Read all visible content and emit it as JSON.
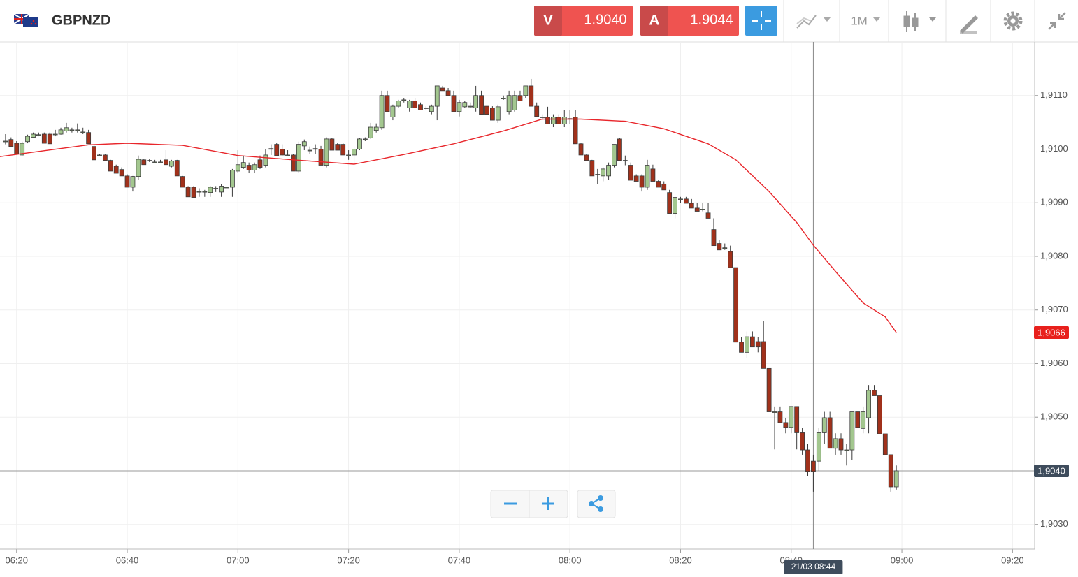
{
  "header": {
    "symbol": "GBPNZD",
    "sell": {
      "label": "V",
      "price": "1.9040"
    },
    "buy": {
      "label": "A",
      "price": "1.9044"
    },
    "interval": "1M"
  },
  "chart_data": {
    "type": "candlestick",
    "x": [
      "06:18",
      "06:19",
      "06:20",
      "06:21",
      "06:22",
      "06:23",
      "06:24",
      "06:25",
      "06:26",
      "06:27",
      "06:28",
      "06:29",
      "06:30",
      "06:31",
      "06:32",
      "06:33",
      "06:34",
      "06:35",
      "06:36",
      "06:37",
      "06:38",
      "06:39",
      "06:40",
      "06:41",
      "06:42",
      "06:43",
      "06:44",
      "06:45",
      "06:46",
      "06:47",
      "06:48",
      "06:49",
      "06:50",
      "06:51",
      "06:52",
      "06:53",
      "06:54",
      "06:55",
      "06:56",
      "06:57",
      "06:58",
      "06:59",
      "07:00",
      "07:01",
      "07:02",
      "07:03",
      "07:04",
      "07:05",
      "07:06",
      "07:07",
      "07:08",
      "07:09",
      "07:10",
      "07:11",
      "07:12",
      "07:13",
      "07:14",
      "07:15",
      "07:16",
      "07:17",
      "07:18",
      "07:19",
      "07:20",
      "07:21",
      "07:22",
      "07:23",
      "07:24",
      "07:25",
      "07:26",
      "07:27",
      "07:28",
      "07:29",
      "07:30",
      "07:31",
      "07:32",
      "07:33",
      "07:34",
      "07:35",
      "07:36",
      "07:37",
      "07:38",
      "07:39",
      "07:40",
      "07:41",
      "07:42",
      "07:43",
      "07:44",
      "07:45",
      "07:46",
      "07:47",
      "07:48",
      "07:49",
      "07:50",
      "07:51",
      "07:52",
      "07:53",
      "07:54",
      "07:55",
      "07:56",
      "07:57",
      "07:58",
      "07:59",
      "08:00",
      "08:01",
      "08:02",
      "08:03",
      "08:04",
      "08:05",
      "08:06",
      "08:07",
      "08:08",
      "08:09",
      "08:10",
      "08:11",
      "08:12",
      "08:13",
      "08:14",
      "08:15",
      "08:16",
      "08:17",
      "08:18",
      "08:19",
      "08:20",
      "08:21",
      "08:22",
      "08:23",
      "08:24",
      "08:25",
      "08:26",
      "08:27",
      "08:28",
      "08:29",
      "08:30",
      "08:31",
      "08:32",
      "08:33",
      "08:34",
      "08:35",
      "08:36",
      "08:37",
      "08:38",
      "08:39",
      "08:40",
      "08:41",
      "08:42",
      "08:43",
      "08:44",
      "08:45",
      "08:46",
      "08:47",
      "08:48",
      "08:49",
      "08:50",
      "08:51",
      "08:52",
      "08:53",
      "08:54",
      "08:55",
      "08:56",
      "08:57",
      "08:58",
      "08:59"
    ],
    "candles": [
      [
        1.91015,
        1.91028,
        1.91009,
        1.91015
      ],
      [
        1.91018,
        1.91022,
        1.91005,
        1.91005
      ],
      [
        1.91011,
        1.91015,
        1.90991,
        1.90991
      ],
      [
        1.90989,
        1.91014,
        1.90988,
        1.91011
      ],
      [
        1.91014,
        1.91027,
        1.91011,
        1.91024
      ],
      [
        1.91022,
        1.91031,
        1.91021,
        1.91028
      ],
      [
        1.91027,
        1.91031,
        1.91024,
        1.91027
      ],
      [
        1.91028,
        1.91031,
        1.91011,
        1.91011
      ],
      [
        1.91028,
        1.91031,
        1.9101,
        1.9101
      ],
      [
        1.91028,
        1.91036,
        1.91024,
        1.91028
      ],
      [
        1.91028,
        1.9104,
        1.91027,
        1.91036
      ],
      [
        1.91034,
        1.91049,
        1.91031,
        1.9104
      ],
      [
        1.91036,
        1.9104,
        1.91031,
        1.91036
      ],
      [
        1.91036,
        1.91048,
        1.91031,
        1.91036
      ],
      [
        1.91032,
        1.9104,
        1.91028,
        1.91032
      ],
      [
        1.91031,
        1.91036,
        1.9101,
        1.9101
      ],
      [
        1.91005,
        1.91009,
        1.9098,
        1.9098
      ],
      [
        1.90989,
        1.90991,
        1.90988,
        1.90989
      ],
      [
        1.90989,
        1.90991,
        1.90979,
        1.90979
      ],
      [
        1.90979,
        1.9098,
        1.90959,
        1.90959
      ],
      [
        1.90968,
        1.90971,
        1.90955,
        1.90955
      ],
      [
        1.90962,
        1.90966,
        1.9095,
        1.9095
      ],
      [
        1.9095,
        1.90953,
        1.90929,
        1.90929
      ],
      [
        1.90929,
        1.9095,
        1.90921,
        1.90949
      ],
      [
        1.90949,
        1.90988,
        1.90942,
        1.90981
      ],
      [
        1.9098,
        1.90981,
        1.90971,
        1.90971
      ],
      [
        1.90979,
        1.90981,
        1.90976,
        1.90979
      ],
      [
        1.90976,
        1.9098,
        1.90975,
        1.90976
      ],
      [
        1.90976,
        1.9098,
        1.90975,
        1.90976
      ],
      [
        1.9098,
        1.90998,
        1.90971,
        1.90971
      ],
      [
        1.90968,
        1.9098,
        1.90966,
        1.90978
      ],
      [
        1.90979,
        1.9098,
        1.9095,
        1.9095
      ],
      [
        1.90949,
        1.9095,
        1.90929,
        1.90929
      ],
      [
        1.90929,
        1.90931,
        1.90911,
        1.90911
      ],
      [
        1.90929,
        1.90931,
        1.9091,
        1.9091
      ],
      [
        1.90921,
        1.90927,
        1.90911,
        1.90921
      ],
      [
        1.90921,
        1.90924,
        1.90911,
        1.90921
      ],
      [
        1.90919,
        1.90931,
        1.90911,
        1.90929
      ],
      [
        1.90927,
        1.90931,
        1.9092,
        1.90927
      ],
      [
        1.9092,
        1.90935,
        1.90911,
        1.90931
      ],
      [
        1.90929,
        1.90931,
        1.90911,
        1.90929
      ],
      [
        1.90929,
        1.90963,
        1.90911,
        1.90961
      ],
      [
        1.90959,
        1.90998,
        1.90955,
        1.90971
      ],
      [
        1.90966,
        1.90988,
        1.90963,
        1.90975
      ],
      [
        1.9097,
        1.90975,
        1.90955,
        1.90961
      ],
      [
        1.90961,
        1.90975,
        1.90955,
        1.90971
      ],
      [
        1.9098,
        1.90988,
        1.90963,
        1.90966
      ],
      [
        1.9097,
        1.91,
        1.90966,
        1.90989
      ],
      [
        1.91001,
        1.91009,
        1.90989,
        1.91001
      ],
      [
        1.91009,
        1.91011,
        1.90988,
        1.90988
      ],
      [
        1.91,
        1.91009,
        1.90988,
        1.90989
      ],
      [
        1.90989,
        1.90998,
        1.90988,
        1.90989
      ],
      [
        1.90989,
        1.90991,
        1.90959,
        1.90959
      ],
      [
        1.90959,
        1.91014,
        1.90955,
        1.91009
      ],
      [
        1.91006,
        1.91018,
        1.90998,
        1.91014
      ],
      [
        1.90998,
        1.91005,
        1.90991,
        1.90998
      ],
      [
        1.91001,
        1.91009,
        1.90991,
        1.91001
      ],
      [
        1.91,
        1.91006,
        1.9097,
        1.9097
      ],
      [
        1.9097,
        1.91022,
        1.90966,
        1.91019
      ],
      [
        1.91019,
        1.91021,
        1.90998,
        1.90998
      ],
      [
        1.91009,
        1.91011,
        1.90998,
        1.90998
      ],
      [
        1.91009,
        1.91011,
        1.90989,
        1.90989
      ],
      [
        1.90989,
        1.90998,
        1.9098,
        1.90989
      ],
      [
        1.90989,
        1.91005,
        1.90971,
        1.91
      ],
      [
        1.91,
        1.91021,
        1.90998,
        1.91019
      ],
      [
        1.91019,
        1.91022,
        1.91015,
        1.91019
      ],
      [
        1.91021,
        1.91049,
        1.91019,
        1.91041
      ],
      [
        1.91035,
        1.91048,
        1.91031,
        1.91041
      ],
      [
        1.9104,
        1.91109,
        1.91036,
        1.911
      ],
      [
        1.911,
        1.91109,
        1.9107,
        1.9107
      ],
      [
        1.9106,
        1.91083,
        1.91054,
        1.9108
      ],
      [
        1.9108,
        1.91092,
        1.91077,
        1.9109
      ],
      [
        1.91092,
        1.91095,
        1.91087,
        1.91092
      ],
      [
        1.91077,
        1.91092,
        1.9107,
        1.9109
      ],
      [
        1.9109,
        1.91095,
        1.91077,
        1.91077
      ],
      [
        1.91083,
        1.91087,
        1.91073,
        1.91073
      ],
      [
        1.91077,
        1.9108,
        1.91073,
        1.91077
      ],
      [
        1.9107,
        1.91083,
        1.91065,
        1.9108
      ],
      [
        1.9108,
        1.91118,
        1.91054,
        1.91118
      ],
      [
        1.91114,
        1.91118,
        1.91109,
        1.91109
      ],
      [
        1.91109,
        1.91114,
        1.911,
        1.911
      ],
      [
        1.911,
        1.91109,
        1.9107,
        1.9107
      ],
      [
        1.9107,
        1.91092,
        1.91061,
        1.91087
      ],
      [
        1.91079,
        1.9109,
        1.91077,
        1.91087
      ],
      [
        1.9108,
        1.91087,
        1.91077,
        1.9108
      ],
      [
        1.91077,
        1.91118,
        1.9107,
        1.911
      ],
      [
        1.911,
        1.91109,
        1.91065,
        1.91065
      ],
      [
        1.9108,
        1.91083,
        1.91065,
        1.91065
      ],
      [
        1.91077,
        1.9108,
        1.91054,
        1.91054
      ],
      [
        1.91054,
        1.91083,
        1.91049,
        1.91079
      ],
      [
        1.91095,
        1.911,
        1.91092,
        1.91095
      ],
      [
        1.9107,
        1.91109,
        1.91065,
        1.911
      ],
      [
        1.91073,
        1.91109,
        1.9107,
        1.911
      ],
      [
        1.911,
        1.91109,
        1.9109,
        1.9109
      ],
      [
        1.911,
        1.91118,
        1.91095,
        1.91118
      ],
      [
        1.91118,
        1.91131,
        1.9108,
        1.9108
      ],
      [
        1.9108,
        1.91087,
        1.91061,
        1.91061
      ],
      [
        1.9106,
        1.91065,
        1.91054,
        1.9106
      ],
      [
        1.9106,
        1.91079,
        1.91047,
        1.91047
      ],
      [
        1.91047,
        1.91065,
        1.91041,
        1.9106
      ],
      [
        1.9106,
        1.91065,
        1.91047,
        1.91047
      ],
      [
        1.91047,
        1.91073,
        1.91041,
        1.9106
      ],
      [
        1.91057,
        1.91073,
        1.91047,
        1.91057
      ],
      [
        1.9106,
        1.91073,
        1.9101,
        1.9101
      ],
      [
        1.9101,
        1.91011,
        1.90989,
        1.90989
      ],
      [
        1.90989,
        1.90991,
        1.90979,
        1.90979
      ],
      [
        1.90979,
        1.9098,
        1.9095,
        1.9095
      ],
      [
        1.90953,
        1.90963,
        1.90935,
        1.90953
      ],
      [
        1.9095,
        1.90966,
        1.9094,
        1.90963
      ],
      [
        1.9095,
        1.90975,
        1.90942,
        1.9097
      ],
      [
        1.9097,
        1.91009,
        1.90966,
        1.91009
      ],
      [
        1.91019,
        1.91021,
        1.90979,
        1.90979
      ],
      [
        1.90979,
        1.90988,
        1.9097,
        1.90979
      ],
      [
        1.9097,
        1.90975,
        1.90942,
        1.90942
      ],
      [
        1.9095,
        1.90953,
        1.9094,
        1.9094
      ],
      [
        1.9095,
        1.90953,
        1.90921,
        1.90929
      ],
      [
        1.90929,
        1.9098,
        1.90924,
        1.9097
      ],
      [
        1.90963,
        1.90971,
        1.9094,
        1.9094
      ],
      [
        1.9094,
        1.90942,
        1.90929,
        1.90929
      ],
      [
        1.90935,
        1.9094,
        1.90924,
        1.90924
      ],
      [
        1.90919,
        1.90924,
        1.9088,
        1.9088
      ],
      [
        1.9088,
        1.90911,
        1.90871,
        1.9091
      ],
      [
        1.90907,
        1.90911,
        1.90899,
        1.90907
      ],
      [
        1.90907,
        1.90911,
        1.90899,
        1.90899
      ],
      [
        1.90899,
        1.90907,
        1.9089,
        1.9089
      ],
      [
        1.9089,
        1.90899,
        1.90884,
        1.90884
      ],
      [
        1.90888,
        1.90899,
        1.90884,
        1.90888
      ],
      [
        1.90881,
        1.90899,
        1.90871,
        1.90871
      ],
      [
        1.9085,
        1.90871,
        1.9082,
        1.9082
      ],
      [
        1.90824,
        1.9083,
        1.90812,
        1.90812
      ],
      [
        1.90816,
        1.90824,
        1.90812,
        1.90816
      ],
      [
        1.90809,
        1.9082,
        1.90779,
        1.90779
      ],
      [
        1.90779,
        1.90779,
        1.9064,
        1.9064
      ],
      [
        1.9064,
        1.9065,
        1.90621,
        1.90621
      ],
      [
        1.90621,
        1.9066,
        1.9061,
        1.9065
      ],
      [
        1.9065,
        1.9066,
        1.90631,
        1.90631
      ],
      [
        1.90641,
        1.9065,
        1.90621,
        1.90631
      ],
      [
        1.90641,
        1.9068,
        1.90591,
        1.90591
      ],
      [
        1.90591,
        1.90591,
        1.9051,
        1.9051
      ],
      [
        1.9051,
        1.9052,
        1.9044,
        1.9051
      ],
      [
        1.9051,
        1.9052,
        1.9049,
        1.9049
      ],
      [
        1.9049,
        1.90499,
        1.9047,
        1.90481
      ],
      [
        1.90481,
        1.9052,
        1.9047,
        1.9052
      ],
      [
        1.9052,
        1.9052,
        1.9044,
        1.90471
      ],
      [
        1.90471,
        1.9048,
        1.9043,
        1.90439
      ],
      [
        1.90439,
        1.9045,
        1.9039,
        1.90399
      ],
      [
        1.90418,
        1.9043,
        1.90361,
        1.90399
      ],
      [
        1.90418,
        1.9048,
        1.904,
        1.90471
      ],
      [
        1.90471,
        1.9051,
        1.9045,
        1.90499
      ],
      [
        1.90499,
        1.9051,
        1.90442,
        1.90442
      ],
      [
        1.90442,
        1.9047,
        1.9043,
        1.9046
      ],
      [
        1.9046,
        1.9047,
        1.9043,
        1.90439
      ],
      [
        1.90439,
        1.9045,
        1.9041,
        1.90439
      ],
      [
        1.90439,
        1.9051,
        1.9042,
        1.9051
      ],
      [
        1.9051,
        1.9051,
        1.90481,
        1.90481
      ],
      [
        1.90479,
        1.9052,
        1.9047,
        1.9051
      ],
      [
        1.90499,
        1.9056,
        1.9047,
        1.9055
      ],
      [
        1.9055,
        1.9056,
        1.9054,
        1.9054
      ],
      [
        1.9054,
        1.9054,
        1.90469,
        1.90469
      ],
      [
        1.90469,
        1.90469,
        1.9043,
        1.9043
      ],
      [
        1.9043,
        1.9043,
        1.90361,
        1.9037
      ],
      [
        1.9037,
        1.9041,
        1.90365,
        1.904
      ]
    ],
    "up_color": "#a3c78f",
    "down_color": "#a1311b",
    "outline_color": "#3b3b3b",
    "overlay": {
      "color": "#e8262b",
      "x": [
        "06:17",
        "06:33",
        "06:40",
        "06:50",
        "07:00",
        "07:10",
        "07:21",
        "07:30",
        "07:39",
        "07:48",
        "07:55",
        "08:02",
        "08:10",
        "08:17",
        "08:25",
        "08:30",
        "08:36",
        "08:41",
        "08:44",
        "08:48",
        "08:53",
        "08:57",
        "08:59"
      ],
      "values": [
        1.90986,
        1.91008,
        1.91011,
        1.91007,
        1.90988,
        1.9098,
        1.90972,
        1.9099,
        1.9101,
        1.91034,
        1.91056,
        1.91056,
        1.91052,
        1.91038,
        1.9101,
        1.9098,
        1.90921,
        1.90863,
        1.90821,
        1.90772,
        1.90713,
        1.90687,
        1.90658
      ]
    },
    "xlim": [
      "06:17",
      "09:24"
    ],
    "xticks": [
      "06:20",
      "06:40",
      "07:00",
      "07:20",
      "07:40",
      "08:00",
      "08:20",
      "08:40",
      "09:00",
      "09:20"
    ],
    "ylim": [
      1.90254,
      1.912
    ],
    "yticks": [
      {
        "value": 1.903,
        "label": "1,9030"
      },
      {
        "value": 1.905,
        "label": "1,9050"
      },
      {
        "value": 1.906,
        "label": "1,9060"
      },
      {
        "value": 1.907,
        "label": "1,9070"
      },
      {
        "value": 1.908,
        "label": "1,9080"
      },
      {
        "value": 1.909,
        "label": "1,9090"
      },
      {
        "value": 1.91,
        "label": "1,9100"
      },
      {
        "value": 1.911,
        "label": "1,9110"
      }
    ],
    "price_markers": [
      {
        "value": 1.90658,
        "label": "1,9066",
        "color": "#e8201c"
      },
      {
        "value": 1.904,
        "label": "1,9040",
        "color": "#3e4c5c"
      }
    ],
    "crosshair": {
      "x": "08:44",
      "label": "21/03 08:44"
    },
    "grid": true
  }
}
